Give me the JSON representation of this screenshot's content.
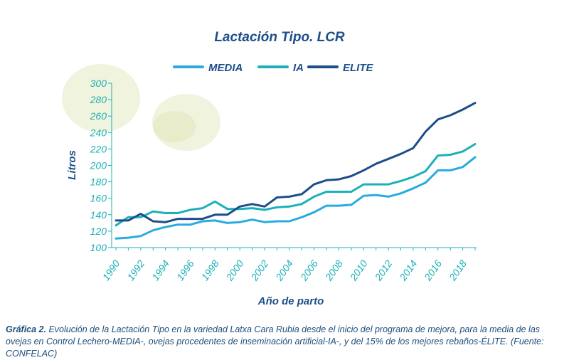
{
  "chart_data": {
    "type": "line",
    "title": "Lactación Tipo. LCR",
    "xlabel": "Año de parto",
    "ylabel": "Litros",
    "ylim": [
      100,
      300
    ],
    "yticks": [
      100,
      120,
      140,
      160,
      180,
      200,
      220,
      240,
      260,
      280,
      300
    ],
    "xlim": [
      1990,
      2019
    ],
    "xticks": [
      1990,
      1992,
      1994,
      1996,
      1998,
      2000,
      2002,
      2004,
      2006,
      2008,
      2010,
      2012,
      2014,
      2016,
      2018
    ],
    "grid": false,
    "legend_position": "top",
    "x": [
      1990,
      1991,
      1992,
      1993,
      1994,
      1995,
      1996,
      1997,
      1998,
      1999,
      2000,
      2001,
      2002,
      2003,
      2004,
      2005,
      2006,
      2007,
      2008,
      2009,
      2010,
      2011,
      2012,
      2013,
      2014,
      2015,
      2016,
      2017,
      2018,
      2019
    ],
    "series": [
      {
        "name": "MEDIA",
        "color": "#29abe2",
        "values": [
          111,
          112,
          114,
          121,
          125,
          128,
          128,
          132,
          133,
          130,
          131,
          134,
          131,
          132,
          132,
          137,
          143,
          151,
          151,
          152,
          163,
          164,
          162,
          166,
          172,
          179,
          194,
          194,
          198,
          210
        ]
      },
      {
        "name": "IA",
        "color": "#1cb1b8",
        "values": [
          127,
          137,
          137,
          144,
          142,
          142,
          146,
          148,
          156,
          147,
          147,
          148,
          146,
          149,
          150,
          153,
          162,
          168,
          168,
          168,
          177,
          177,
          177,
          181,
          186,
          193,
          212,
          213,
          217,
          226
        ]
      },
      {
        "name": "ELITE",
        "color": "#1d4e89",
        "values": [
          133,
          133,
          141,
          132,
          131,
          135,
          135,
          135,
          140,
          140,
          150,
          153,
          150,
          161,
          162,
          165,
          177,
          182,
          183,
          187,
          194,
          202,
          208,
          214,
          221,
          241,
          256,
          261,
          268,
          276
        ]
      }
    ]
  },
  "caption": {
    "label": "Gráfica 2.",
    "text": " Evolución de la Lactación Tipo en la variedad Latxa Cara Rubia desde el inicio del programa de mejora, para la media de las ovejas en Control Lechero-MEDIA-, ovejas procedentes de inseminación artificial-IA-, y del 15% de los mejores rebaños-ÉLITE. (Fuente: CONFELAC)"
  },
  "colors": {
    "title": "#1d4e89",
    "axis": "#1cb1b8",
    "tick_label": "#1cb1b8",
    "axis_label": "#1d4e89",
    "caption": "#1d4e79"
  }
}
